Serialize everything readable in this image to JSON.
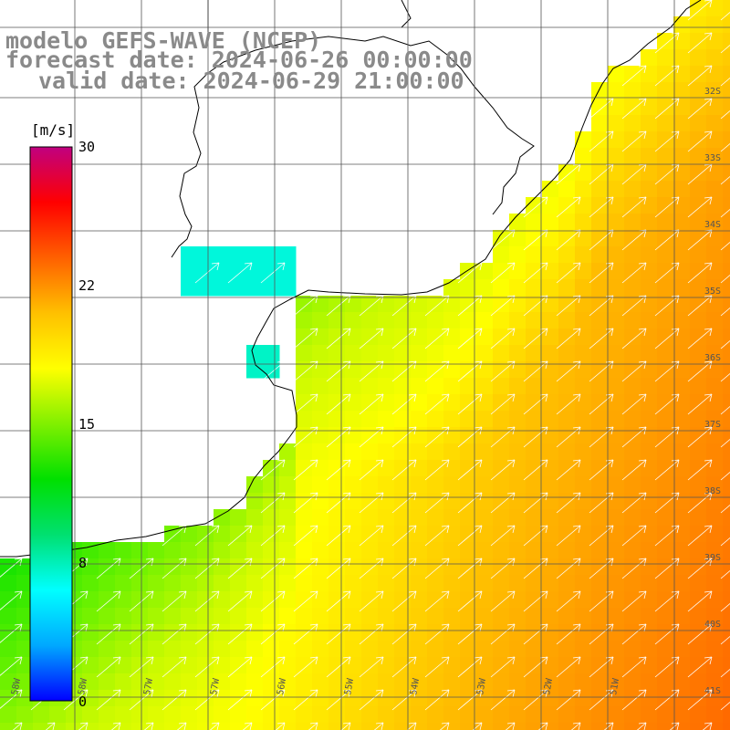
{
  "title": {
    "line1": "modelo GEFS-WAVE (NCEP)",
    "line2": "forecast date: 2024-06-26 00:00:00",
    "line3": "valid date: 2024-06-29 21:00:00"
  },
  "colorbar": {
    "unit": "[m/s]",
    "ticks": [
      "30",
      "22",
      "15",
      "8",
      "0"
    ],
    "tick_values": [
      30,
      22,
      15,
      8,
      0
    ],
    "colors": [
      "#0000ff",
      "#00a8ff",
      "#00ffff",
      "#00e070",
      "#00e000",
      "#80f000",
      "#ffff00",
      "#ffc000",
      "#ff6000",
      "#ff0000",
      "#c00080"
    ]
  },
  "lon_labels": [
    "58W",
    "58W",
    "57W",
    "57W",
    "56W",
    "55W",
    "54W",
    "53W",
    "52W",
    "51W"
  ],
  "lat_labels": [
    "32S",
    "33S",
    "34S",
    "35S",
    "36S",
    "37S",
    "38S",
    "39S",
    "40S",
    "41S"
  ],
  "field": {
    "variable": "wind speed",
    "unit": "m/s",
    "direction": "south-west to north-east"
  }
}
